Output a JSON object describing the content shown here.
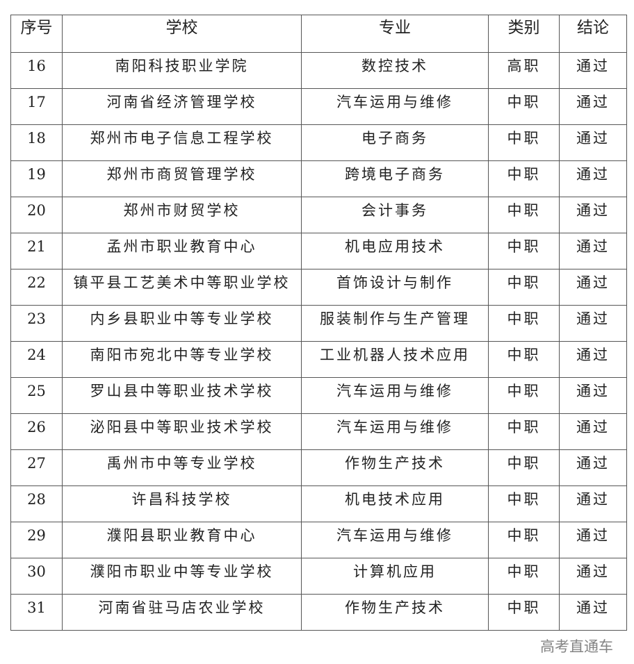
{
  "table": {
    "headers": [
      "序号",
      "学校",
      "专业",
      "类别",
      "结论"
    ],
    "rows": [
      [
        "16",
        "南阳科技职业学院",
        "数控技术",
        "高职",
        "通过"
      ],
      [
        "17",
        "河南省经济管理学校",
        "汽车运用与维修",
        "中职",
        "通过"
      ],
      [
        "18",
        "郑州市电子信息工程学校",
        "电子商务",
        "中职",
        "通过"
      ],
      [
        "19",
        "郑州市商贸管理学校",
        "跨境电子商务",
        "中职",
        "通过"
      ],
      [
        "20",
        "郑州市财贸学校",
        "会计事务",
        "中职",
        "通过"
      ],
      [
        "21",
        "孟州市职业教育中心",
        "机电应用技术",
        "中职",
        "通过"
      ],
      [
        "22",
        "镇平县工艺美术中等职业学校",
        "首饰设计与制作",
        "中职",
        "通过"
      ],
      [
        "23",
        "内乡县职业中等专业学校",
        "服装制作与生产管理",
        "中职",
        "通过"
      ],
      [
        "24",
        "南阳市宛北中等专业学校",
        "工业机器人技术应用",
        "中职",
        "通过"
      ],
      [
        "25",
        "罗山县中等职业技术学校",
        "汽车运用与维修",
        "中职",
        "通过"
      ],
      [
        "26",
        "泌阳县中等职业技术学校",
        "汽车运用与维修",
        "中职",
        "通过"
      ],
      [
        "27",
        "禹州市中等专业学校",
        "作物生产技术",
        "中职",
        "通过"
      ],
      [
        "28",
        "许昌科技学校",
        "机电技术应用",
        "中职",
        "通过"
      ],
      [
        "29",
        "濮阳县职业教育中心",
        "汽车运用与维修",
        "中职",
        "通过"
      ],
      [
        "30",
        "濮阳市职业中等专业学校",
        "计算机应用",
        "中职",
        "通过"
      ],
      [
        "31",
        "河南省驻马店农业学校",
        "作物生产技术",
        "中职",
        "通过"
      ]
    ]
  },
  "watermark": "高考直通车"
}
